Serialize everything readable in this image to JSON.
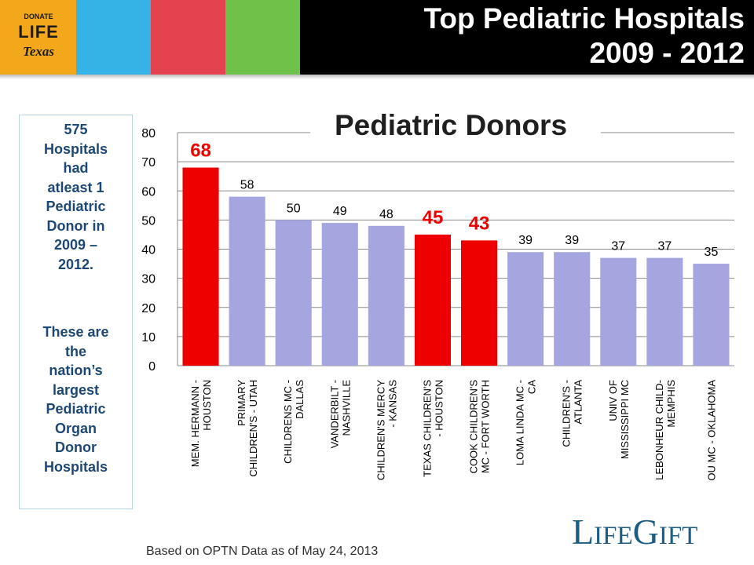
{
  "header": {
    "logo_top": "DONATE",
    "logo_mid": "LIFE",
    "logo_bottom": "Texas",
    "title_line1": "Top Pediatric Hospitals",
    "title_line2": "2009 - 2012",
    "colors": {
      "logo": "#f3a81c",
      "blue": "#35b3e6",
      "red": "#e54250",
      "green": "#6ec24a",
      "bar": "#000000"
    }
  },
  "sidebar": {
    "lines_top": [
      "575",
      "Hospitals",
      "had",
      "atleast 1",
      "Pediatric",
      "Donor in",
      "2009 –",
      "2012."
    ],
    "lines_bottom": [
      "These are",
      "the",
      "nation’s",
      "largest",
      "Pediatric",
      "Organ",
      "Donor",
      "Hospitals"
    ]
  },
  "chart_data": {
    "type": "bar",
    "title": "Pediatric Donors",
    "xlabel": "",
    "ylabel": "",
    "ylim": [
      0,
      80
    ],
    "yticks": [
      0,
      10,
      20,
      30,
      40,
      50,
      60,
      70,
      80
    ],
    "grid": true,
    "categories": [
      [
        "MEM. HERMANN -",
        "HOUSTON"
      ],
      [
        "PRIMARY",
        "CHILDREN'S - UTAH"
      ],
      [
        "CHILDRENS MC -",
        "DALLAS"
      ],
      [
        "VANDERBILT -",
        "NASHVILLE"
      ],
      [
        "CHILDREN'S MERCY",
        "- KANSAS"
      ],
      [
        "TEXAS CHILDREN'S",
        "- HOUSTON"
      ],
      [
        "COOK CHILDREN'S",
        "MC - FORT WORTH"
      ],
      [
        "LOMA LINDA MC -",
        "CA"
      ],
      [
        "CHILDREN'S -",
        "ATLANTA"
      ],
      [
        "UNIV OF",
        "MISSISSIPPI MC"
      ],
      [
        "LEBONHEUR CHILD-",
        "MEMPHIS"
      ],
      [
        "OU MC - OKLAHOMA"
      ]
    ],
    "values": [
      68,
      58,
      50,
      49,
      48,
      45,
      43,
      39,
      39,
      37,
      37,
      35
    ],
    "highlighted": [
      true,
      false,
      false,
      false,
      false,
      true,
      true,
      false,
      false,
      false,
      false,
      false
    ],
    "colors": {
      "normal": "#a5a6e0",
      "highlight": "#ee0000"
    }
  },
  "footer": {
    "source_note": "Based on OPTN Data as of May 24, 2013",
    "logo_L": "L",
    "logo_IFE": "IFE",
    "logo_G": "G",
    "logo_IFT": "IFT"
  }
}
